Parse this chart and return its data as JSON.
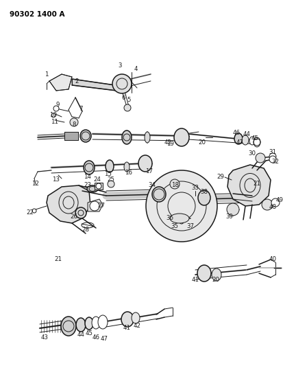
{
  "title": "90302 1400 A",
  "bg_color": "#ffffff",
  "title_color": "#000000",
  "title_fontsize": 7.5,
  "diagram_color": "#1a1a1a",
  "label_fontsize": 6.2,
  "fig_w": 4.14,
  "fig_h": 5.33,
  "dpi": 100
}
